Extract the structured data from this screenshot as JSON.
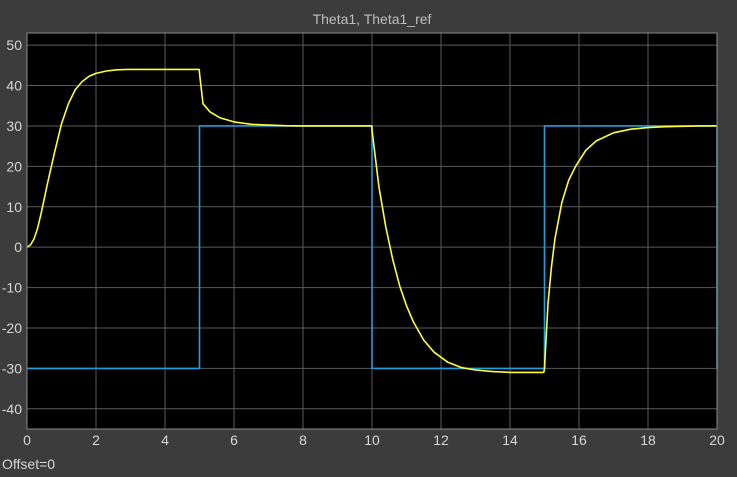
{
  "chart_data": {
    "type": "line",
    "title": "Theta1, Theta1_ref",
    "xlim": [
      0,
      20
    ],
    "ylim": [
      -45,
      53
    ],
    "xticks": [
      0,
      2,
      4,
      6,
      8,
      10,
      12,
      14,
      16,
      18,
      20
    ],
    "yticks": [
      -40,
      -30,
      -20,
      -10,
      0,
      10,
      20,
      30,
      40,
      50
    ],
    "grid": true,
    "footer": "Offset=0",
    "series": [
      {
        "color": "#ffff33",
        "x": [
          0,
          0.1,
          0.2,
          0.3,
          0.4,
          0.5,
          0.6,
          0.8,
          1.0,
          1.2,
          1.4,
          1.6,
          1.8,
          2.0,
          2.3,
          2.6,
          3.0,
          3.5,
          4.0,
          4.5,
          4.99,
          5.0,
          5.1,
          5.3,
          5.6,
          6.0,
          6.5,
          7.0,
          7.5,
          8.0,
          9.0,
          9.99,
          10.0,
          10.2,
          10.4,
          10.6,
          10.8,
          11.0,
          11.2,
          11.5,
          11.8,
          12.2,
          12.6,
          13.0,
          13.5,
          14.0,
          14.5,
          14.98,
          15.0,
          15.05,
          15.1,
          15.2,
          15.3,
          15.5,
          15.7,
          15.9,
          16.2,
          16.5,
          17.0,
          17.5,
          18.0,
          18.5,
          19.0,
          19.5,
          20.0
        ],
        "values": [
          0,
          0.5,
          2,
          4.5,
          8,
          12,
          16,
          23.5,
          30.5,
          35.5,
          39,
          41,
          42.3,
          43,
          43.6,
          43.9,
          44,
          44,
          44,
          44,
          44,
          43,
          35.5,
          33.5,
          32,
          31,
          30.4,
          30.2,
          30.05,
          30,
          30,
          30,
          29,
          15,
          5,
          -3,
          -9.5,
          -14.5,
          -18.5,
          -23,
          -26,
          -28.5,
          -29.8,
          -30.4,
          -30.8,
          -31,
          -31,
          -31,
          -30,
          -22,
          -14,
          -5,
          2,
          11,
          16.5,
          20,
          24,
          26.3,
          28.3,
          29.2,
          29.6,
          29.8,
          29.9,
          30,
          30
        ]
      },
      {
        "color": "#1f9ee0",
        "x": [
          0,
          5,
          5,
          10,
          10,
          15,
          15,
          20,
          20
        ],
        "values": [
          -30,
          -30,
          30,
          30,
          -30,
          -30,
          30,
          30,
          -30
        ]
      }
    ]
  }
}
